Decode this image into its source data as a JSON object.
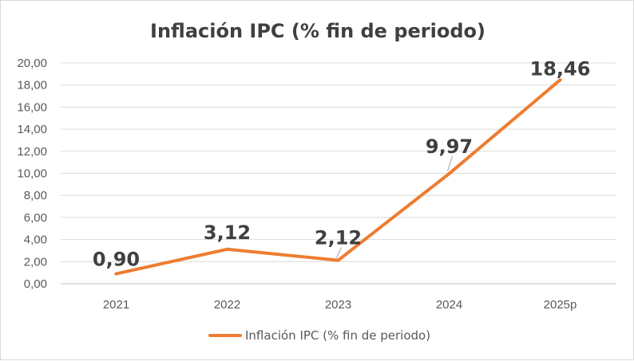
{
  "chart_data": {
    "type": "line",
    "title": "Inflación IPC (% fin de periodo)",
    "xlabel": "",
    "ylabel": "",
    "categories": [
      "2021",
      "2022",
      "2023",
      "2024",
      "2025p"
    ],
    "series": [
      {
        "name": "Inflación IPC (% fin de periodo)",
        "values": [
          0.9,
          3.12,
          2.12,
          9.97,
          18.46
        ],
        "labels": [
          "0,90",
          "3,12",
          "2,12",
          "9,97",
          "18,46"
        ],
        "color": "#ed7d31"
      }
    ],
    "ylim": [
      0,
      20
    ],
    "yticks": [
      0,
      2,
      4,
      6,
      8,
      10,
      12,
      14,
      16,
      18,
      20
    ],
    "ytick_labels": [
      "0,00",
      "2,00",
      "4,00",
      "6,00",
      "8,00",
      "10,00",
      "12,00",
      "14,00",
      "16,00",
      "18,00",
      "20,00"
    ],
    "grid": "horizontal",
    "legend": "bottom"
  }
}
